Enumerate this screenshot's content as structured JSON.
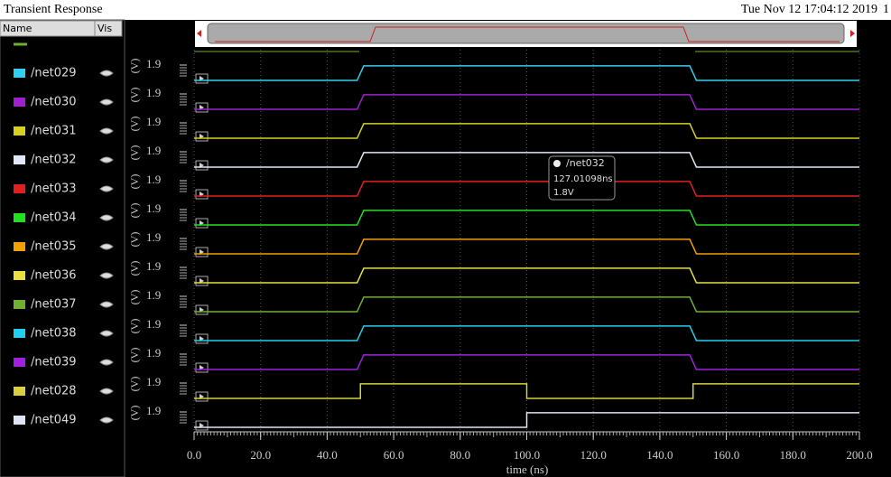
{
  "header": {
    "title": "Transient Response",
    "timestamp": "Tue Nov 12 17:04:12 2019",
    "corner": "1"
  },
  "list": {
    "columns": [
      "Name",
      "Vis"
    ]
  },
  "plot": {
    "xlabel": "time (ns)",
    "xlim": [
      0,
      200
    ],
    "xticks": [
      {
        "value": 0,
        "label": "0.0"
      },
      {
        "value": 20,
        "label": "20.0"
      },
      {
        "value": 40,
        "label": "40.0"
      },
      {
        "value": 60,
        "label": "60.0"
      },
      {
        "value": 80,
        "label": "80.0"
      },
      {
        "value": 100,
        "label": "100.0"
      },
      {
        "value": 120,
        "label": "120.0"
      },
      {
        "value": 140,
        "label": "140.0"
      },
      {
        "value": 160,
        "label": "160.0"
      },
      {
        "value": 180,
        "label": "180.0"
      },
      {
        "value": 200,
        "label": "200.0"
      }
    ],
    "unit": "(V)",
    "ylim": [
      0,
      1.9
    ],
    "ytick": 1.9,
    "signals": [
      {
        "name": "/net029",
        "color": "#30d0f0",
        "x": [
          0,
          49,
          51,
          149,
          151,
          200
        ],
        "values": [
          0,
          0,
          1.8,
          1.8,
          0,
          0
        ]
      },
      {
        "name": "/net030",
        "color": "#a020d0",
        "x": [
          0,
          49,
          51,
          149,
          151,
          200
        ],
        "values": [
          0,
          0,
          1.8,
          1.8,
          0,
          0
        ]
      },
      {
        "name": "/net031",
        "color": "#d8d020",
        "x": [
          0,
          49,
          51,
          149,
          151,
          200
        ],
        "values": [
          0,
          0,
          1.8,
          1.8,
          0,
          0
        ]
      },
      {
        "name": "/net032",
        "color": "#e0e8f8",
        "x": [
          0,
          49,
          51,
          149,
          151,
          200
        ],
        "values": [
          0,
          0,
          1.8,
          1.8,
          0,
          0
        ]
      },
      {
        "name": "/net033",
        "color": "#e02020",
        "x": [
          0,
          49,
          51,
          149,
          151,
          200
        ],
        "values": [
          0,
          0,
          1.8,
          1.8,
          0,
          0
        ]
      },
      {
        "name": "/net034",
        "color": "#20e020",
        "x": [
          0,
          49,
          51,
          149,
          151,
          200
        ],
        "values": [
          0,
          0,
          1.8,
          1.8,
          0,
          0
        ]
      },
      {
        "name": "/net035",
        "color": "#f0a000",
        "x": [
          0,
          49,
          51,
          149,
          151,
          200
        ],
        "values": [
          0,
          0,
          1.8,
          1.8,
          0,
          0
        ]
      },
      {
        "name": "/net036",
        "color": "#e8e040",
        "x": [
          0,
          49,
          51,
          149,
          151,
          200
        ],
        "values": [
          0,
          0,
          1.8,
          1.8,
          0,
          0
        ]
      },
      {
        "name": "/net037",
        "color": "#70b030",
        "x": [
          0,
          49,
          51,
          149,
          151,
          200
        ],
        "values": [
          0,
          0,
          1.8,
          1.8,
          0,
          0
        ]
      },
      {
        "name": "/net038",
        "color": "#20d0f0",
        "x": [
          0,
          49,
          51,
          149,
          151,
          200
        ],
        "values": [
          0,
          0,
          1.8,
          1.8,
          0,
          0
        ]
      },
      {
        "name": "/net039",
        "color": "#a020e0",
        "x": [
          0,
          49,
          51,
          149,
          151,
          200
        ],
        "values": [
          0,
          0,
          1.8,
          1.8,
          0,
          0
        ]
      },
      {
        "name": "/net028",
        "color": "#d8d040",
        "x": [
          0,
          50,
          50,
          100,
          100,
          150,
          150,
          200
        ],
        "values": [
          0,
          0,
          1.8,
          1.8,
          0,
          0,
          1.8,
          1.8
        ]
      },
      {
        "name": "/net049",
        "color": "#dde4f4",
        "x": [
          0,
          100,
          100,
          200
        ],
        "values": [
          0,
          0,
          1.8,
          1.8
        ]
      }
    ]
  },
  "tooltip": {
    "signal": "/net032",
    "time": "127.01098ns",
    "value": "1.8V"
  }
}
